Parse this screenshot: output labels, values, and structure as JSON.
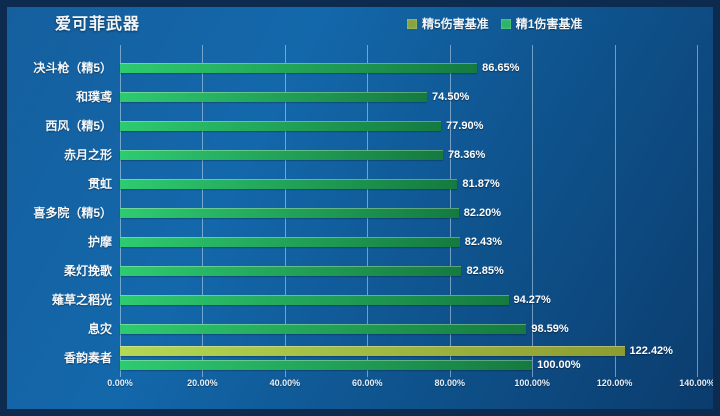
{
  "title": "爱可菲武器",
  "legend": {
    "items": [
      {
        "label": "精5伤害基准",
        "color": "#87a53c"
      },
      {
        "label": "精1伤害基准",
        "color": "#2eb368"
      }
    ]
  },
  "chart_data": {
    "type": "bar",
    "orientation": "horizontal",
    "title": "爱可菲武器",
    "xlabel": "",
    "ylabel": "",
    "xlim": [
      0,
      140
    ],
    "x_ticks": [
      "0.00%",
      "20.00%",
      "40.00%",
      "60.00%",
      "80.00%",
      "100.00%",
      "120.00%",
      "140.00%"
    ],
    "grid": true,
    "legend_position": "top-right",
    "categories": [
      "决斗枪（精5）",
      "和璞鸢",
      "西风（精5）",
      "赤月之形",
      "贯虹",
      "喜多院（精5）",
      "护摩",
      "柔灯挽歌",
      "薙草之稻光",
      "息灾",
      "香韵奏者"
    ],
    "series": [
      {
        "name": "精5伤害基准",
        "color_start": "#b3d855",
        "color_end": "#8d9c31",
        "values": [
          null,
          null,
          null,
          null,
          null,
          null,
          null,
          null,
          null,
          null,
          122.42
        ]
      },
      {
        "name": "精1伤害基准",
        "color_start": "#2ecb70",
        "color_end": "#157a40",
        "values": [
          86.65,
          74.5,
          77.9,
          78.36,
          81.87,
          82.2,
          82.43,
          82.85,
          94.27,
          98.59,
          100.0
        ]
      }
    ],
    "value_labels": [
      "86.65%",
      "74.50%",
      "77.90%",
      "78.36%",
      "81.87%",
      "82.20%",
      "82.43%",
      "82.85%",
      "94.27%",
      "98.59%",
      "122.42%",
      "100.00%"
    ]
  },
  "colors": {
    "background_start": "#155f9e",
    "background_end": "#0b3c6d",
    "frame_border": "#0d2b4e",
    "gridline": "rgba(195,218,240,0.55)",
    "text": "#ffffff"
  }
}
